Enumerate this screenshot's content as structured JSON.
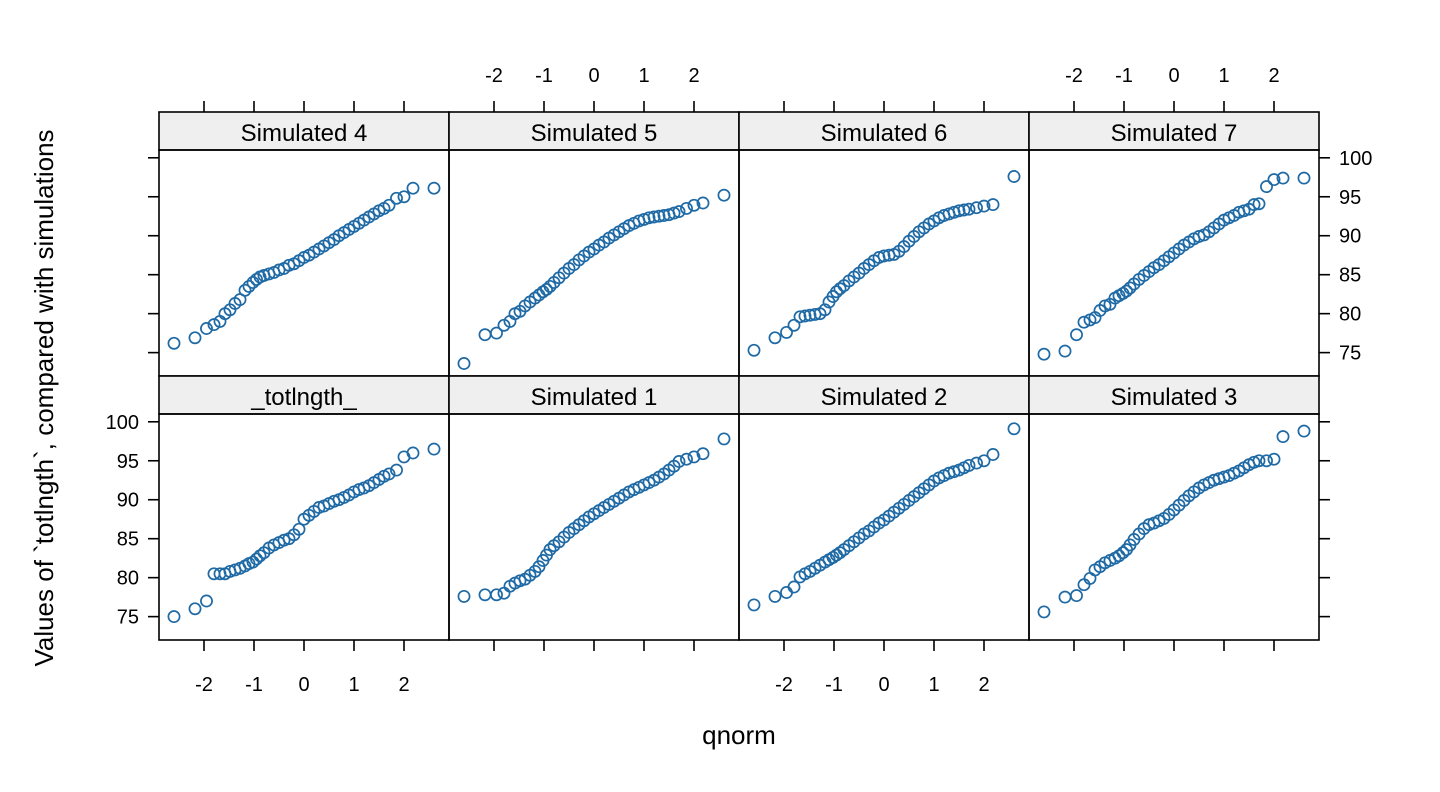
{
  "chart_data": {
    "type": "scatter",
    "layout": {
      "columns": 4,
      "rows": 2
    },
    "xlabel": "qnorm",
    "ylabel": "Values of `totlngth`, compared with simulations",
    "xlim": [
      -2.9,
      2.9
    ],
    "ylim": [
      72.0,
      101.0
    ],
    "xticks": [
      -2,
      -1,
      0,
      1,
      2
    ],
    "yticks": [
      75,
      80,
      85,
      90,
      95,
      100
    ],
    "point_color": "#1F6AA5",
    "strip_fill": "#EFEFEF",
    "panels": [
      {
        "name": "Simulated 4",
        "row": "top",
        "column": 1,
        "x": [
          -2.6,
          -2.18,
          -1.95,
          -1.8,
          -1.68,
          -1.58,
          -1.48,
          -1.38,
          -1.28,
          -1.18,
          -1.1,
          -1.02,
          -0.95,
          -0.88,
          -0.8,
          -0.7,
          -0.6,
          -0.5,
          -0.4,
          -0.3,
          -0.2,
          -0.1,
          0.0,
          0.1,
          0.2,
          0.3,
          0.4,
          0.5,
          0.6,
          0.7,
          0.8,
          0.9,
          1.0,
          1.1,
          1.2,
          1.3,
          1.4,
          1.5,
          1.6,
          1.7,
          1.85,
          2.0,
          2.18,
          2.6
        ],
        "y": [
          76.2,
          76.9,
          78.1,
          78.6,
          79.0,
          80.0,
          80.5,
          81.3,
          81.8,
          83.0,
          83.5,
          84.0,
          84.4,
          84.7,
          84.9,
          85.1,
          85.3,
          85.6,
          85.8,
          86.2,
          86.4,
          86.8,
          87.2,
          87.5,
          87.9,
          88.3,
          88.7,
          89.1,
          89.5,
          90.0,
          90.4,
          90.8,
          91.2,
          91.6,
          92.0,
          92.4,
          92.8,
          93.2,
          93.5,
          93.9,
          94.8,
          95.0,
          96.1,
          96.1
        ]
      },
      {
        "name": "Simulated 5",
        "row": "top",
        "column": 2,
        "x": [
          -2.6,
          -2.18,
          -1.95,
          -1.8,
          -1.68,
          -1.58,
          -1.48,
          -1.38,
          -1.28,
          -1.18,
          -1.1,
          -1.02,
          -0.95,
          -0.88,
          -0.8,
          -0.7,
          -0.6,
          -0.5,
          -0.4,
          -0.3,
          -0.2,
          -0.1,
          0.0,
          0.1,
          0.2,
          0.3,
          0.4,
          0.5,
          0.6,
          0.7,
          0.8,
          0.9,
          1.0,
          1.1,
          1.2,
          1.3,
          1.4,
          1.5,
          1.6,
          1.7,
          1.85,
          2.0,
          2.18,
          2.6
        ],
        "y": [
          73.6,
          77.3,
          77.5,
          78.5,
          79.0,
          80.0,
          80.3,
          81.0,
          81.5,
          82.0,
          82.4,
          82.8,
          83.1,
          83.5,
          84.0,
          84.6,
          85.2,
          85.8,
          86.3,
          86.9,
          87.4,
          87.9,
          88.3,
          88.8,
          89.2,
          89.7,
          90.1,
          90.5,
          90.9,
          91.3,
          91.6,
          91.9,
          92.1,
          92.3,
          92.4,
          92.5,
          92.6,
          92.7,
          92.9,
          93.1,
          93.5,
          93.9,
          94.2,
          95.2
        ]
      },
      {
        "name": "Simulated 6",
        "row": "top",
        "column": 3,
        "x": [
          -2.6,
          -2.18,
          -1.95,
          -1.8,
          -1.68,
          -1.58,
          -1.48,
          -1.38,
          -1.28,
          -1.18,
          -1.1,
          -1.02,
          -0.95,
          -0.88,
          -0.8,
          -0.7,
          -0.6,
          -0.5,
          -0.4,
          -0.3,
          -0.2,
          -0.1,
          0.0,
          0.1,
          0.2,
          0.3,
          0.4,
          0.5,
          0.6,
          0.7,
          0.8,
          0.9,
          1.0,
          1.1,
          1.2,
          1.3,
          1.4,
          1.5,
          1.6,
          1.7,
          1.85,
          2.0,
          2.18,
          2.6
        ],
        "y": [
          75.3,
          76.9,
          77.6,
          78.5,
          79.6,
          79.7,
          79.8,
          79.9,
          80.0,
          80.5,
          81.5,
          82.2,
          82.8,
          83.2,
          83.6,
          84.2,
          84.7,
          85.2,
          85.8,
          86.3,
          86.8,
          87.2,
          87.4,
          87.5,
          87.6,
          88.0,
          88.6,
          89.3,
          89.9,
          90.5,
          91.0,
          91.5,
          91.9,
          92.3,
          92.6,
          92.8,
          93.0,
          93.2,
          93.3,
          93.4,
          93.6,
          93.8,
          94.0,
          97.6
        ]
      },
      {
        "name": "Simulated 7",
        "row": "top",
        "column": 4,
        "x": [
          -2.6,
          -2.18,
          -1.95,
          -1.8,
          -1.68,
          -1.58,
          -1.48,
          -1.38,
          -1.28,
          -1.18,
          -1.1,
          -1.02,
          -0.95,
          -0.88,
          -0.8,
          -0.7,
          -0.6,
          -0.5,
          -0.4,
          -0.3,
          -0.2,
          -0.1,
          0.0,
          0.1,
          0.2,
          0.3,
          0.4,
          0.5,
          0.6,
          0.7,
          0.8,
          0.9,
          1.0,
          1.1,
          1.2,
          1.3,
          1.4,
          1.5,
          1.6,
          1.7,
          1.85,
          2.0,
          2.18,
          2.6
        ],
        "y": [
          74.8,
          75.2,
          77.3,
          78.9,
          79.2,
          79.5,
          80.4,
          81.0,
          81.2,
          82.0,
          82.3,
          82.6,
          82.9,
          83.3,
          83.8,
          84.4,
          84.9,
          85.4,
          85.9,
          86.3,
          86.8,
          87.3,
          87.8,
          88.3,
          88.8,
          89.2,
          89.6,
          89.9,
          90.1,
          90.5,
          91.0,
          91.5,
          92.0,
          92.3,
          92.6,
          93.0,
          93.2,
          93.4,
          94.0,
          94.1,
          96.3,
          97.2,
          97.4,
          97.4
        ]
      },
      {
        "name": "_totlngth_",
        "row": "bottom",
        "column": 1,
        "x": [
          -2.6,
          -2.18,
          -1.95,
          -1.8,
          -1.68,
          -1.58,
          -1.48,
          -1.38,
          -1.28,
          -1.18,
          -1.1,
          -1.02,
          -0.95,
          -0.88,
          -0.8,
          -0.7,
          -0.6,
          -0.5,
          -0.4,
          -0.3,
          -0.2,
          -0.1,
          0.0,
          0.1,
          0.2,
          0.3,
          0.4,
          0.5,
          0.6,
          0.7,
          0.8,
          0.9,
          1.0,
          1.1,
          1.2,
          1.3,
          1.4,
          1.5,
          1.6,
          1.7,
          1.85,
          2.0,
          2.18,
          2.6
        ],
        "y": [
          75.0,
          76.0,
          77.0,
          80.5,
          80.5,
          80.5,
          80.8,
          81.0,
          81.2,
          81.5,
          81.8,
          82.0,
          82.4,
          82.8,
          83.2,
          83.8,
          84.2,
          84.5,
          84.8,
          85.0,
          85.5,
          86.2,
          87.5,
          88.0,
          88.5,
          89.0,
          89.2,
          89.5,
          89.8,
          90.0,
          90.3,
          90.6,
          91.0,
          91.3,
          91.5,
          91.8,
          92.2,
          92.6,
          93.0,
          93.3,
          93.8,
          95.5,
          96.0,
          96.5
        ]
      },
      {
        "name": "Simulated 1",
        "row": "bottom",
        "column": 2,
        "x": [
          -2.6,
          -2.18,
          -1.95,
          -1.8,
          -1.68,
          -1.58,
          -1.48,
          -1.38,
          -1.28,
          -1.18,
          -1.1,
          -1.02,
          -0.95,
          -0.88,
          -0.8,
          -0.7,
          -0.6,
          -0.5,
          -0.4,
          -0.3,
          -0.2,
          -0.1,
          0.0,
          0.1,
          0.2,
          0.3,
          0.4,
          0.5,
          0.6,
          0.7,
          0.8,
          0.9,
          1.0,
          1.1,
          1.2,
          1.3,
          1.4,
          1.5,
          1.6,
          1.7,
          1.85,
          2.0,
          2.18,
          2.6
        ],
        "y": [
          77.6,
          77.8,
          77.8,
          78.0,
          78.9,
          79.3,
          79.6,
          79.8,
          80.3,
          80.8,
          81.4,
          82.2,
          82.9,
          83.6,
          84.1,
          84.6,
          85.2,
          85.8,
          86.3,
          86.8,
          87.3,
          87.8,
          88.2,
          88.6,
          89.0,
          89.4,
          89.8,
          90.2,
          90.6,
          91.0,
          91.3,
          91.6,
          91.9,
          92.2,
          92.5,
          92.9,
          93.3,
          93.8,
          94.3,
          94.9,
          95.2,
          95.5,
          95.9,
          97.8
        ]
      },
      {
        "name": "Simulated 2",
        "row": "bottom",
        "column": 3,
        "x": [
          -2.6,
          -2.18,
          -1.95,
          -1.8,
          -1.68,
          -1.58,
          -1.48,
          -1.38,
          -1.28,
          -1.18,
          -1.1,
          -1.02,
          -0.95,
          -0.88,
          -0.8,
          -0.7,
          -0.6,
          -0.5,
          -0.4,
          -0.3,
          -0.2,
          -0.1,
          0.0,
          0.1,
          0.2,
          0.3,
          0.4,
          0.5,
          0.6,
          0.7,
          0.8,
          0.9,
          1.0,
          1.1,
          1.2,
          1.3,
          1.4,
          1.5,
          1.6,
          1.7,
          1.85,
          2.0,
          2.18,
          2.6
        ],
        "y": [
          76.5,
          77.6,
          78.1,
          78.8,
          80.1,
          80.5,
          80.8,
          81.2,
          81.6,
          82.0,
          82.3,
          82.6,
          82.9,
          83.2,
          83.6,
          84.1,
          84.6,
          85.1,
          85.6,
          86.0,
          86.5,
          87.0,
          87.4,
          87.9,
          88.4,
          88.9,
          89.4,
          89.9,
          90.4,
          90.9,
          91.4,
          91.9,
          92.4,
          92.8,
          93.1,
          93.4,
          93.6,
          93.8,
          94.1,
          94.4,
          94.7,
          95.0,
          95.8,
          99.1
        ]
      },
      {
        "name": "Simulated 3",
        "row": "bottom",
        "column": 4,
        "x": [
          -2.6,
          -2.18,
          -1.95,
          -1.8,
          -1.68,
          -1.58,
          -1.48,
          -1.38,
          -1.28,
          -1.18,
          -1.1,
          -1.02,
          -0.95,
          -0.88,
          -0.8,
          -0.7,
          -0.6,
          -0.5,
          -0.4,
          -0.3,
          -0.2,
          -0.1,
          0.0,
          0.1,
          0.2,
          0.3,
          0.4,
          0.5,
          0.6,
          0.7,
          0.8,
          0.9,
          1.0,
          1.1,
          1.2,
          1.3,
          1.4,
          1.5,
          1.6,
          1.7,
          1.85,
          2.0,
          2.18,
          2.6
        ],
        "y": [
          75.6,
          77.5,
          77.7,
          79.1,
          79.9,
          81.0,
          81.4,
          81.9,
          82.2,
          82.5,
          82.8,
          83.2,
          83.6,
          84.2,
          84.9,
          85.6,
          86.3,
          86.8,
          87.0,
          87.3,
          87.6,
          88.1,
          88.7,
          89.3,
          89.9,
          90.5,
          91.0,
          91.5,
          91.9,
          92.2,
          92.5,
          92.7,
          92.9,
          93.1,
          93.4,
          93.7,
          94.1,
          94.5,
          94.8,
          95.0,
          95.0,
          95.2,
          98.1,
          98.8
        ]
      }
    ]
  }
}
